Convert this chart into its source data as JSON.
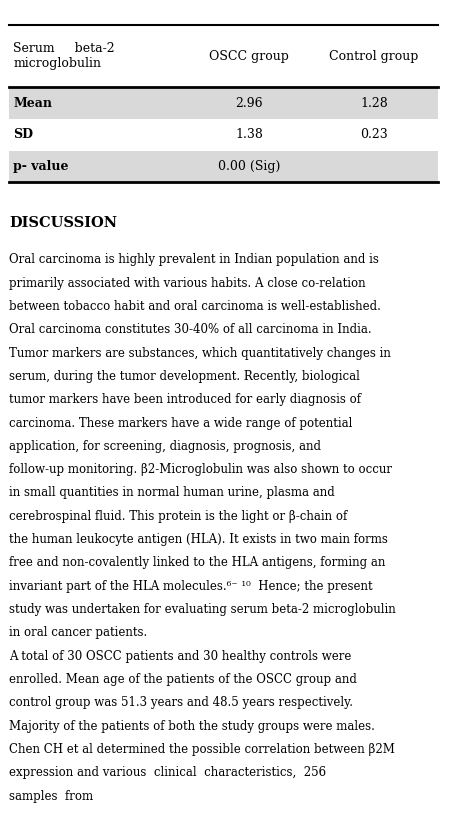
{
  "bg_color": "#ffffff",
  "table": {
    "header_row": [
      "Serum     beta-2\nmicroglobulin",
      "OSCC group",
      "Control group"
    ],
    "rows": [
      [
        "Mean",
        "2.96",
        "1.28"
      ],
      [
        "SD",
        "1.38",
        "0.23"
      ],
      [
        "p- value",
        "0.00 (Sig)",
        ""
      ]
    ],
    "row_bg_colors": [
      "#d9d9d9",
      "#ffffff",
      "#d9d9d9"
    ],
    "header_bg_color": "#ffffff",
    "border_color": "#000000"
  },
  "discussion_title": "DISCUSSION",
  "discussion_text": "Oral carcinoma is highly prevalent in Indian population and is primarily associated with various habits. A close co-relation between tobacco habit and oral carcinoma is well-established. Oral carcinoma constitutes 30-40% of all carcinoma in India. Tumor markers are substances, which quantitatively changes in serum, during the tumor development. Recently, biological tumor markers have been introduced for early diagnosis of carcinoma. These markers have a wide range of potential application, for screening, diagnosis, prognosis, and follow-up monitoring. β2-Microglobulin was also shown to occur in small quantities in normal human urine, plasma and cerebrospinal fluid. This protein is the light or β-chain of the human leukocyte antigen (HLA). It exists in two main forms free and non-covalently linked to the HLA antigens, forming an invariant part of the HLA molecules.⁶⁻ ¹⁰  Hence; the present study was undertaken for evaluating serum beta-2 microglobulin in oral cancer patients.\nA total of 30 OSCC patients and 30 healthy controls were enrolled. Mean age of the patients of the OSCC group and control group was 51.3 years and 48.5 years respectively. Majority of the patients of both the study groups were males. Chen CH et al determined the possible correlation between β2M expression and various  clinical  characteristics,  256 samples  from"
}
